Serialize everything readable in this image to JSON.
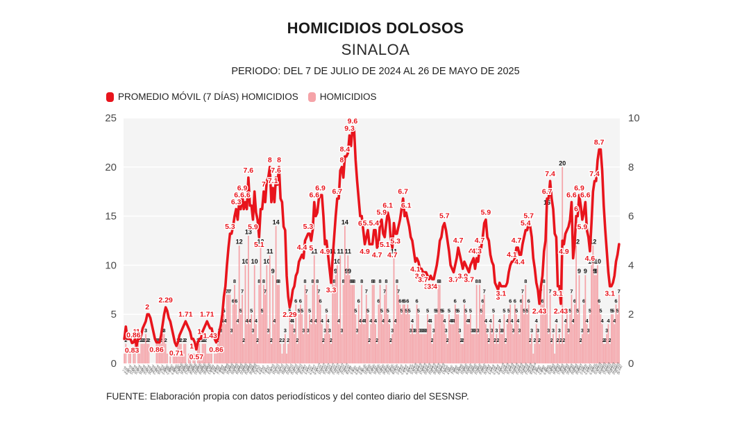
{
  "title": "HOMICIDIOS DOLOSOS",
  "subtitle": "SINALOA",
  "period": "PERIODO: DEL 7 DE JULIO DE 2024 AL 26 DE MAYO DE 2025",
  "source": "FUENTE: Elaboración propia con datos periodísticos y del conteo diario del SESNSP.",
  "colors": {
    "line_red": "#e8141c",
    "bar_pink": "#f5a3a8",
    "plot_bg": "#f4f4f4",
    "grid": "#ffffff",
    "axis_text": "#4a4a4a",
    "bar_label": "#111111"
  },
  "legend": [
    {
      "label": "PROMEDIO MÓVIL (7 DÍAS) HOMICIDIOS",
      "color": "#e8141c"
    },
    {
      "label": "HOMICIDIOS",
      "color": "#f5a3a8"
    }
  ],
  "chart_data": {
    "type": "bar",
    "title": "HOMICIDIOS DOLOSOS SINALOA",
    "x": {
      "start_date": "2024-07-07",
      "end_date": "2025-05-26",
      "days": 324,
      "month_abbr_es": [
        "ene",
        "feb",
        "mar",
        "abr",
        "may",
        "jun",
        "jul",
        "ago",
        "sep",
        "oct",
        "nov",
        "dic"
      ]
    },
    "left_axis": {
      "min": 0,
      "max": 25,
      "ticks": [
        0,
        5,
        10,
        15,
        20,
        25
      ]
    },
    "right_axis": {
      "min": 0,
      "max": 10,
      "ticks": [
        0,
        2,
        4,
        6,
        8,
        10
      ]
    },
    "series": [
      {
        "name": "HOMICIDIOS",
        "type": "bar",
        "axis": "left",
        "values": [
          1,
          2,
          0,
          1,
          1,
          0,
          1,
          2,
          0,
          2,
          1,
          2,
          2,
          2,
          3,
          2,
          2,
          0,
          0,
          0,
          0,
          2,
          2,
          2,
          2,
          3,
          3,
          2,
          1,
          0,
          1,
          0,
          1,
          1,
          1,
          2,
          2,
          2,
          1,
          2,
          2,
          0,
          1,
          1,
          0,
          1,
          1,
          0,
          2,
          2,
          1,
          2,
          2,
          2,
          1,
          1,
          1,
          1,
          0,
          1,
          1,
          2,
          3,
          3,
          4,
          5,
          4,
          7,
          7,
          7,
          3,
          6,
          8,
          6,
          4,
          12,
          5,
          7,
          2,
          10,
          4,
          13,
          4,
          5,
          3,
          10,
          4,
          2,
          8,
          12,
          5,
          8,
          7,
          10,
          3,
          11,
          2,
          9,
          4,
          14,
          8,
          8,
          2,
          1,
          2,
          3,
          1,
          2,
          5,
          4,
          4,
          3,
          6,
          2,
          5,
          6,
          5,
          3,
          8,
          7,
          3,
          5,
          4,
          8,
          11,
          4,
          8,
          7,
          6,
          4,
          2,
          3,
          5,
          4,
          3,
          2,
          11,
          8,
          9,
          10,
          4,
          11,
          3,
          8,
          14,
          9,
          11,
          9,
          8,
          8,
          8,
          5,
          3,
          6,
          4,
          8,
          4,
          4,
          7,
          5,
          2,
          4,
          8,
          8,
          4,
          2,
          6,
          8,
          5,
          4,
          7,
          8,
          5,
          4,
          2,
          3,
          11,
          4,
          8,
          7,
          6,
          5,
          6,
          6,
          5,
          6,
          5,
          3,
          4,
          3,
          3,
          6,
          5,
          3,
          3,
          3,
          3,
          3,
          5,
          4,
          4,
          2,
          3,
          5,
          5,
          8,
          8,
          5,
          5,
          4,
          3,
          2,
          5,
          4,
          4,
          4,
          6,
          5,
          5,
          3,
          2,
          2,
          6,
          5,
          4,
          4,
          5,
          3,
          3,
          3,
          8,
          3,
          8,
          5,
          6,
          7,
          4,
          3,
          2,
          4,
          3,
          5,
          2,
          3,
          2,
          4,
          3,
          3,
          5,
          2,
          4,
          5,
          6,
          4,
          3,
          6,
          5,
          4,
          3,
          6,
          7,
          5,
          8,
          5,
          6,
          2,
          3,
          1,
          2,
          4,
          3,
          2,
          7,
          6,
          8,
          5,
          16,
          3,
          7,
          2,
          3,
          1,
          4,
          2,
          3,
          2,
          20,
          2,
          4,
          5,
          3,
          5,
          7,
          4,
          6,
          12,
          5,
          9,
          2,
          3,
          6,
          9,
          4,
          3,
          5,
          10,
          12,
          9,
          9,
          10,
          6,
          5,
          4,
          2,
          2,
          3,
          4,
          2,
          5,
          5,
          4,
          6,
          5,
          7
        ]
      },
      {
        "name": "PROMEDIO MÓVIL (7 DÍAS) HOMICIDIOS",
        "type": "line",
        "axis": "right",
        "derived": "7-day moving average of HOMICIDIOS",
        "window": 7,
        "labeled_values_sample": [
          0.86,
          1,
          0.71,
          1.14,
          1.57,
          2,
          1.14,
          2.14,
          1.71,
          0.86,
          1.29,
          1.71,
          2.1,
          2.7,
          3.1,
          5.1,
          5.9,
          6.3,
          6.7,
          6.4,
          7.4,
          5.6,
          7.3,
          7.1,
          8.1,
          3.6,
          2.7,
          4.4,
          4.9,
          6.4,
          6.9,
          5.7,
          4.3,
          5,
          6.7,
          8.1,
          7.6,
          9,
          8.6,
          9.6,
          6.3,
          5.9,
          5.3,
          4.9,
          5.4,
          6,
          5.6,
          4.6,
          5.3,
          4.1,
          3.6,
          3.7,
          4.1,
          4.4,
          5.4,
          5.1,
          6.1,
          4.7,
          3.9,
          3.4,
          3.3,
          4.9,
          5.9,
          3.1,
          5.3,
          5.7,
          6.3,
          4.6,
          3.4,
          5.6,
          7,
          6.9,
          7.1,
          7.6,
          7.7,
          5.9,
          5,
          4.6,
          4
        ]
      }
    ]
  }
}
